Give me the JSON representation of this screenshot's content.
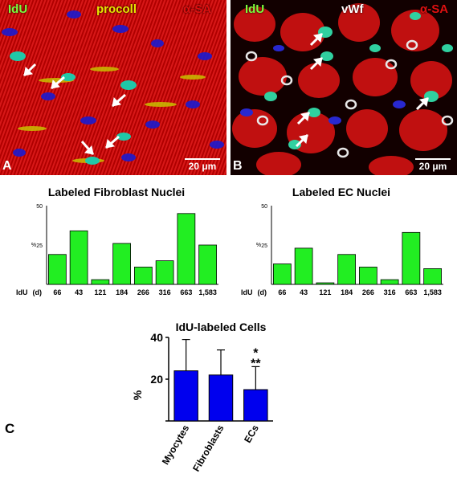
{
  "panel_a": {
    "labels": [
      {
        "text": "IdU",
        "color": "#7CFC3C"
      },
      {
        "text": "procoll",
        "color": "#E8E400"
      },
      {
        "text": "α-SA",
        "color": "#E01010"
      }
    ],
    "letter": "A",
    "scale": "20 μm"
  },
  "panel_b": {
    "labels": [
      {
        "text": "IdU",
        "color": "#7CFC3C"
      },
      {
        "text": "vWf",
        "color": "#FFFFFF"
      },
      {
        "text": "α-SA",
        "color": "#E01010"
      }
    ],
    "letter": "B",
    "scale": "20 μm"
  },
  "panel_c_letter": "C",
  "chart_data": [
    {
      "type": "bar",
      "title": "Labeled Fibroblast Nuclei",
      "ylabel": "%",
      "xlabel_prefix": "IdU",
      "unit_label": "(d)",
      "categories": [
        "66",
        "43",
        "121",
        "184",
        "266",
        "316",
        "663",
        "1,583"
      ],
      "values": [
        19,
        34,
        3,
        26,
        11,
        15,
        45,
        25
      ],
      "yticks": [
        25,
        50
      ],
      "ylim": [
        0,
        50
      ],
      "color": "#22EE22"
    },
    {
      "type": "bar",
      "title": "Labeled EC Nuclei",
      "ylabel": "%",
      "xlabel_prefix": "IdU",
      "unit_label": "(d)",
      "categories": [
        "66",
        "43",
        "121",
        "184",
        "266",
        "316",
        "663",
        "1,583"
      ],
      "values": [
        13,
        23,
        1,
        19,
        11,
        3,
        33,
        10
      ],
      "yticks": [
        25,
        50
      ],
      "ylim": [
        0,
        50
      ],
      "color": "#22EE22"
    },
    {
      "type": "bar",
      "title": "IdU-labeled Cells",
      "ylabel": "%",
      "categories": [
        "Myocytes",
        "Fibroblasts",
        "ECs"
      ],
      "values": [
        24,
        22,
        15
      ],
      "errors": [
        15,
        12,
        11
      ],
      "yticks": [
        20,
        40
      ],
      "ylim": [
        0,
        40
      ],
      "annotations": [
        "*",
        "**"
      ],
      "color": "#0000EE"
    }
  ]
}
